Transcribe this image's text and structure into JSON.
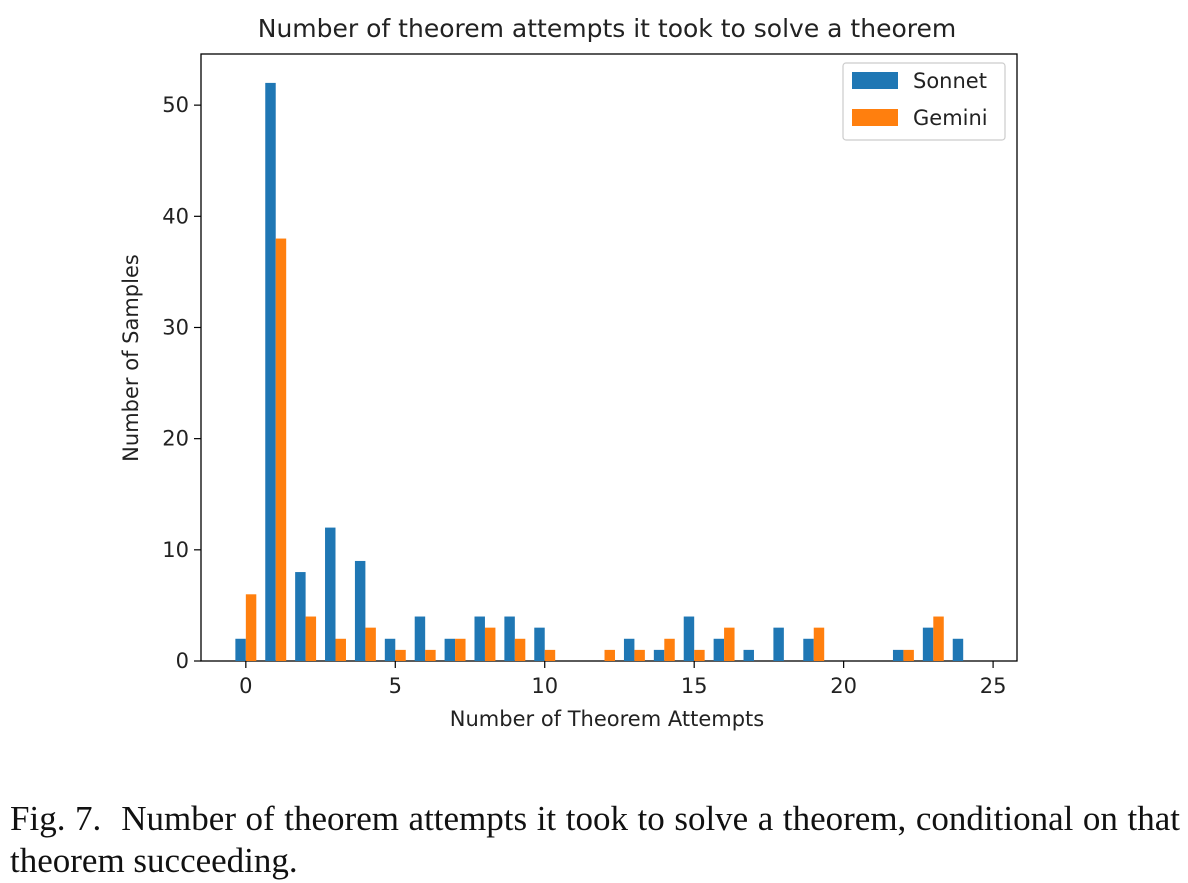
{
  "chart_data": {
    "type": "bar",
    "title": "Number of theorem attempts it took to solve a theorem",
    "xlabel": "Number of Theorem Attempts",
    "ylabel": "Number of Samples",
    "xlim": [
      -1.5,
      25.8
    ],
    "ylim": [
      0,
      54.6
    ],
    "xticks": [
      0,
      5,
      10,
      15,
      20,
      25
    ],
    "yticks": [
      0,
      10,
      20,
      30,
      40,
      50
    ],
    "grid": false,
    "legend_position": "top-right",
    "x": [
      0,
      1,
      2,
      3,
      4,
      5,
      6,
      7,
      8,
      9,
      10,
      11,
      12,
      13,
      14,
      15,
      16,
      17,
      18,
      19,
      20,
      21,
      22,
      23,
      24
    ],
    "series": [
      {
        "name": "Sonnet",
        "color": "#1f77b4",
        "values": [
          2,
          52,
          8,
          12,
          9,
          2,
          4,
          2,
          4,
          4,
          3,
          0,
          0,
          2,
          1,
          4,
          2,
          1,
          3,
          2,
          0,
          0,
          1,
          3,
          2
        ]
      },
      {
        "name": "Gemini",
        "color": "#ff7f0e",
        "values": [
          6,
          38,
          4,
          2,
          3,
          1,
          1,
          2,
          3,
          2,
          1,
          0,
          1,
          1,
          2,
          1,
          3,
          0,
          0,
          3,
          0,
          0,
          1,
          4,
          0
        ]
      }
    ]
  },
  "caption": {
    "label": "Fig. 7.",
    "text": "Number of theorem attempts it took to solve a theorem, conditional on that theorem succeeding."
  }
}
